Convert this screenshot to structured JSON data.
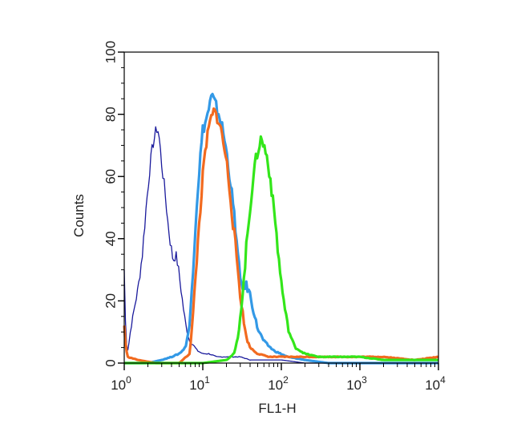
{
  "chart_data": {
    "type": "line",
    "title": "",
    "xlabel": "FL1-H",
    "ylabel": "Counts",
    "x_scale": "log",
    "xlim": [
      1,
      10000
    ],
    "ylim": [
      0,
      100
    ],
    "x_ticks": [
      {
        "value": 1,
        "base": "10",
        "exp": "0"
      },
      {
        "value": 10,
        "base": "10",
        "exp": "1"
      },
      {
        "value": 100,
        "base": "10",
        "exp": "2"
      },
      {
        "value": 1000,
        "base": "10",
        "exp": "3"
      },
      {
        "value": 10000,
        "base": "10",
        "exp": "4"
      }
    ],
    "y_ticks": [
      "0",
      "20",
      "40",
      "60",
      "80",
      "100"
    ],
    "grid": false,
    "legend": "none",
    "series": [
      {
        "color": "#1a1a9c",
        "stroke": "thin",
        "points": [
          [
            1.0,
            30
          ],
          [
            1.03,
            15
          ],
          [
            1.07,
            6
          ],
          [
            1.12,
            4
          ],
          [
            1.18,
            9
          ],
          [
            1.25,
            13
          ],
          [
            1.35,
            18
          ],
          [
            1.5,
            24
          ],
          [
            1.7,
            35
          ],
          [
            1.9,
            50
          ],
          [
            2.1,
            62
          ],
          [
            2.3,
            70
          ],
          [
            2.5,
            74
          ],
          [
            2.65,
            76
          ],
          [
            2.8,
            72
          ],
          [
            3.0,
            64
          ],
          [
            3.3,
            55
          ],
          [
            3.6,
            45
          ],
          [
            3.9,
            38
          ],
          [
            4.2,
            33
          ],
          [
            4.5,
            35
          ],
          [
            4.8,
            32
          ],
          [
            5.2,
            25
          ],
          [
            5.7,
            17
          ],
          [
            6.2,
            11
          ],
          [
            6.8,
            7
          ],
          [
            7.5,
            6
          ],
          [
            8.5,
            4
          ],
          [
            10,
            3
          ],
          [
            12,
            3
          ],
          [
            15,
            2
          ],
          [
            20,
            2
          ],
          [
            30,
            2
          ],
          [
            40,
            1
          ],
          [
            60,
            1
          ],
          [
            100,
            1
          ],
          [
            200,
            0
          ],
          [
            500,
            0
          ],
          [
            10000,
            0
          ]
        ]
      },
      {
        "color": "#3399e6",
        "stroke": "thick",
        "points": [
          [
            1.0,
            0
          ],
          [
            2,
            0
          ],
          [
            3,
            1
          ],
          [
            4,
            2
          ],
          [
            5,
            3
          ],
          [
            6,
            5
          ],
          [
            6.8,
            12
          ],
          [
            7.5,
            30
          ],
          [
            8.3,
            50
          ],
          [
            9.2,
            65
          ],
          [
            10,
            75
          ],
          [
            11,
            78
          ],
          [
            12,
            82
          ],
          [
            13,
            86
          ],
          [
            14.5,
            83
          ],
          [
            16,
            80
          ],
          [
            18,
            75
          ],
          [
            20,
            68
          ],
          [
            22,
            60
          ],
          [
            24,
            52
          ],
          [
            26,
            44
          ],
          [
            28,
            34
          ],
          [
            30,
            27
          ],
          [
            33,
            24
          ],
          [
            36,
            25
          ],
          [
            40,
            22
          ],
          [
            45,
            16
          ],
          [
            50,
            11
          ],
          [
            60,
            7
          ],
          [
            80,
            4
          ],
          [
            120,
            2
          ],
          [
            200,
            1
          ],
          [
            400,
            0
          ],
          [
            10000,
            0
          ]
        ]
      },
      {
        "color": "#f26a1f",
        "stroke": "thick",
        "points": [
          [
            1.0,
            12
          ],
          [
            1.05,
            5
          ],
          [
            1.1,
            2
          ],
          [
            1.5,
            1
          ],
          [
            2.5,
            0
          ],
          [
            5,
            0
          ],
          [
            6.8,
            3
          ],
          [
            7.5,
            15
          ],
          [
            8.2,
            30
          ],
          [
            9,
            45
          ],
          [
            10,
            60
          ],
          [
            11,
            70
          ],
          [
            12.5,
            78
          ],
          [
            14,
            81
          ],
          [
            16,
            78
          ],
          [
            18,
            72
          ],
          [
            20,
            65
          ],
          [
            22,
            56
          ],
          [
            24,
            46
          ],
          [
            26,
            38
          ],
          [
            28,
            30
          ],
          [
            30,
            22
          ],
          [
            33,
            14
          ],
          [
            36,
            8
          ],
          [
            40,
            5
          ],
          [
            50,
            3
          ],
          [
            70,
            2
          ],
          [
            100,
            2
          ],
          [
            200,
            2
          ],
          [
            500,
            2
          ],
          [
            1000,
            2
          ],
          [
            2000,
            2
          ],
          [
            5000,
            1
          ],
          [
            10000,
            2
          ]
        ]
      },
      {
        "color": "#33e61a",
        "stroke": "thick",
        "points": [
          [
            1.0,
            0
          ],
          [
            10,
            0
          ],
          [
            20,
            1
          ],
          [
            25,
            3
          ],
          [
            28,
            8
          ],
          [
            30,
            15
          ],
          [
            33,
            25
          ],
          [
            36,
            38
          ],
          [
            40,
            50
          ],
          [
            44,
            60
          ],
          [
            48,
            66
          ],
          [
            52,
            70
          ],
          [
            55,
            72
          ],
          [
            60,
            70
          ],
          [
            66,
            66
          ],
          [
            72,
            60
          ],
          [
            78,
            52
          ],
          [
            85,
            44
          ],
          [
            92,
            34
          ],
          [
            100,
            26
          ],
          [
            110,
            18
          ],
          [
            125,
            10
          ],
          [
            150,
            5
          ],
          [
            200,
            3
          ],
          [
            300,
            2
          ],
          [
            500,
            2
          ],
          [
            1000,
            2
          ],
          [
            2000,
            1
          ],
          [
            5000,
            1
          ],
          [
            10000,
            1
          ]
        ]
      }
    ]
  }
}
